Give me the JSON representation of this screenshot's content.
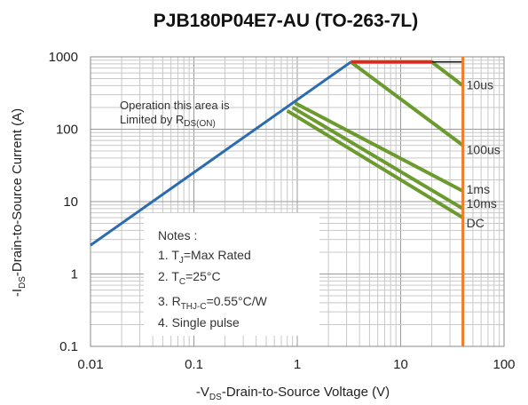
{
  "chart_data": {
    "type": "line",
    "title": "PJB180P04E7-AU (TO-263-7L)",
    "xlabel": {
      "prefix": "-V",
      "sub": "DS",
      "suffix": "-Drain-to-Source Voltage  (V)"
    },
    "ylabel": {
      "prefix": "-I",
      "sub": "DS",
      "suffix": "-Drain-to-Source Current (A)"
    },
    "x_scale": "log",
    "y_scale": "log",
    "xlim": [
      0.01,
      100
    ],
    "ylim": [
      0.1,
      1000
    ],
    "x_ticks": [
      {
        "value": 0.01,
        "label": "0.01"
      },
      {
        "value": 0.1,
        "label": "0.1"
      },
      {
        "value": 1,
        "label": "1"
      },
      {
        "value": 10,
        "label": "10"
      },
      {
        "value": 100,
        "label": "100"
      }
    ],
    "y_ticks": [
      {
        "value": 0.1,
        "label": "0.1"
      },
      {
        "value": 1,
        "label": "1"
      },
      {
        "value": 10,
        "label": "10"
      },
      {
        "value": 100,
        "label": "100"
      },
      {
        "value": 1000,
        "label": "1000"
      }
    ],
    "grid": true,
    "series": [
      {
        "key": "rdson",
        "color": "#2b6cb0",
        "points": [
          [
            0.01,
            2.5
          ],
          [
            3.3,
            850
          ]
        ]
      },
      {
        "key": "max",
        "color": "#e02424",
        "points": [
          [
            3.3,
            850
          ],
          [
            20,
            850
          ]
        ]
      },
      {
        "key": "pulse10us",
        "name": "10us",
        "color": "#6b9a2e",
        "points": [
          [
            3.3,
            850
          ],
          [
            20,
            850
          ],
          [
            40,
            400
          ]
        ]
      },
      {
        "key": "pulse100us",
        "name": "100us",
        "color": "#6b9a2e",
        "points": [
          [
            3.3,
            850
          ],
          [
            40,
            60
          ]
        ]
      },
      {
        "key": "pulse1ms",
        "name": "1ms",
        "color": "#6b9a2e",
        "points": [
          [
            0.95,
            230
          ],
          [
            40,
            14
          ]
        ]
      },
      {
        "key": "pulse10ms",
        "name": "10ms",
        "color": "#6b9a2e",
        "points": [
          [
            0.9,
            200
          ],
          [
            40,
            8
          ]
        ]
      },
      {
        "key": "dc",
        "name": "DC",
        "color": "#6b9a2e",
        "points": [
          [
            0.8,
            180
          ],
          [
            40,
            6
          ]
        ]
      },
      {
        "key": "vmax",
        "color": "#f07c2a",
        "points": [
          [
            40,
            1000
          ],
          [
            40,
            0.1
          ]
        ]
      },
      {
        "key": "boundary",
        "color": "#111111",
        "points": [
          [
            20,
            850
          ],
          [
            40,
            850
          ],
          [
            40,
            400
          ]
        ]
      }
    ],
    "annotation": {
      "line1": "Operation this area is",
      "line2_prefix": "Limited  by R",
      "line2_sub": "DS(ON)"
    },
    "notes": {
      "heading": "Notes :",
      "items": [
        {
          "prefix": "1. T",
          "sub": "J",
          "suffix": "=Max Rated"
        },
        {
          "prefix": "2. T",
          "sub": "C",
          "suffix": "=25°C"
        },
        {
          "prefix": "3. R",
          "sub": "THJ-C",
          "suffix": "=0.55°C/W"
        },
        {
          "prefix": "4. Single pulse",
          "sub": "",
          "suffix": ""
        }
      ]
    }
  }
}
